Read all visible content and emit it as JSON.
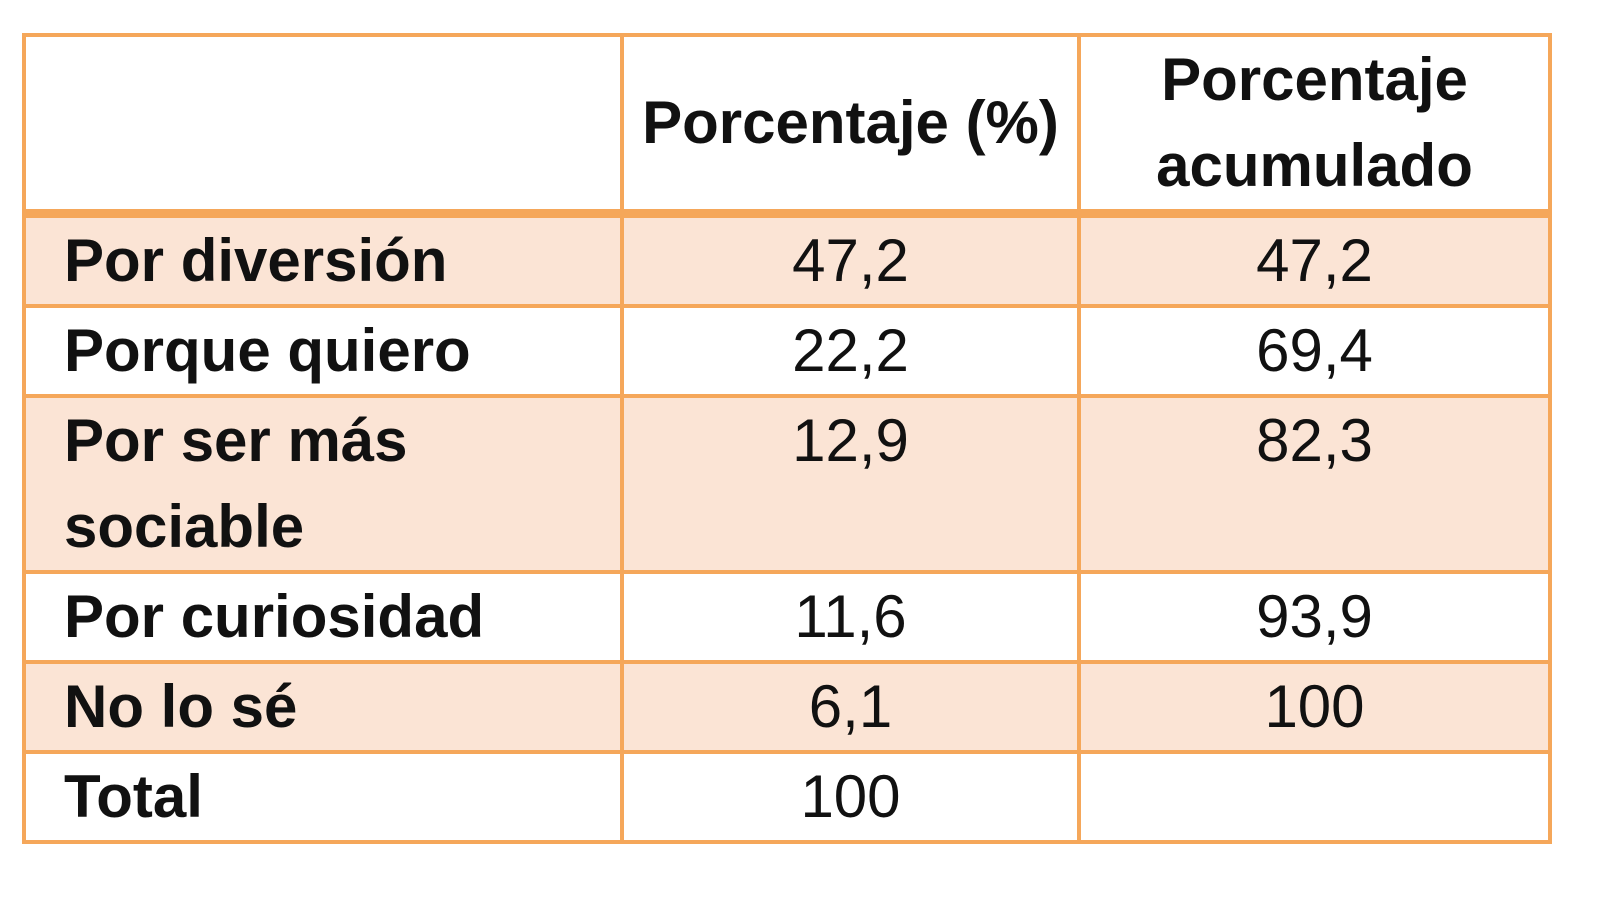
{
  "table": {
    "columns": [
      "Porcentaje (%)",
      "Porcentaje acumulado"
    ],
    "rows": [
      {
        "label": "Por diversión",
        "percent": "47,2",
        "cumulative": "47,2"
      },
      {
        "label": "Porque quiero",
        "percent": "22,2",
        "cumulative": "69,4"
      },
      {
        "label": "Por ser más sociable",
        "percent": "12,9",
        "cumulative": "82,3"
      },
      {
        "label": "Por curiosidad",
        "percent": "11,6",
        "cumulative": "93,9"
      },
      {
        "label": "No lo sé",
        "percent": "6,1",
        "cumulative": "100"
      },
      {
        "label": "Total",
        "percent": "100"
      }
    ]
  }
}
